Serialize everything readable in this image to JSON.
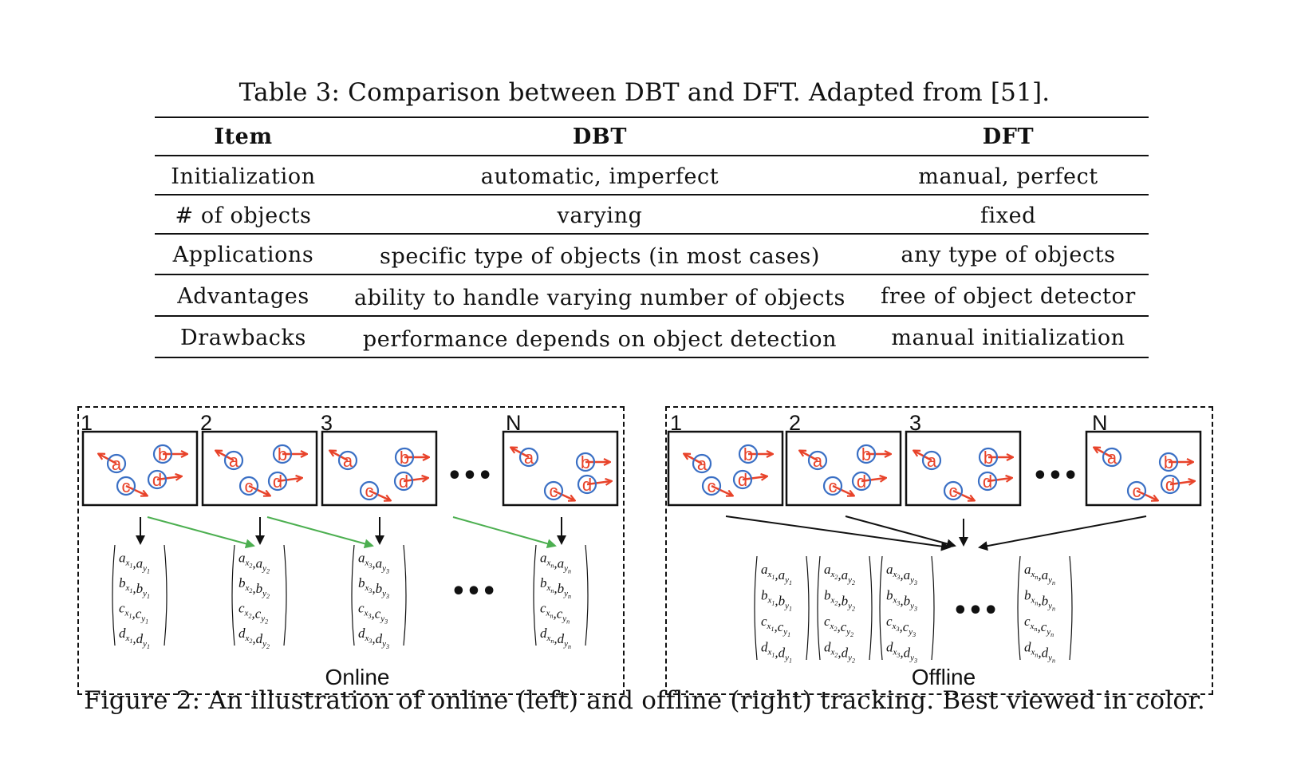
{
  "table": {
    "caption": "Table 3: Comparison between DBT and DFT. Adapted from [51].",
    "headers": [
      "Item",
      "DBT",
      "DFT"
    ],
    "rows": [
      [
        "Initialization",
        "automatic, imperfect",
        "manual, perfect"
      ],
      [
        "# of objects",
        "varying",
        "fixed"
      ],
      [
        "Applications",
        "specific type of objects (in most cases)",
        "any type of objects"
      ],
      [
        "Advantages",
        "ability to handle varying number of objects",
        "free of object detector"
      ],
      [
        "Drawbacks",
        "performance depends on object detection",
        "manual initialization"
      ]
    ]
  },
  "figure": {
    "caption": "Figure 2: An illustration of online (left) and offline (right) tracking. Best viewed in color.",
    "frame_labels": [
      "1",
      "2",
      "3",
      "N"
    ],
    "object_labels": [
      "a",
      "b",
      "c",
      "d"
    ],
    "ellipsis": "•••",
    "online_label": "Online",
    "offline_label": "Offline",
    "matrix_subscripts": [
      "1",
      "2",
      "3",
      "n"
    ],
    "colors": {
      "object_circle": "#3a6fc4",
      "object_label": "#e8432a",
      "motion_arrow": "#e8432a",
      "online_link_arrow": "#4caf50",
      "black_arrow": "#111111"
    }
  }
}
